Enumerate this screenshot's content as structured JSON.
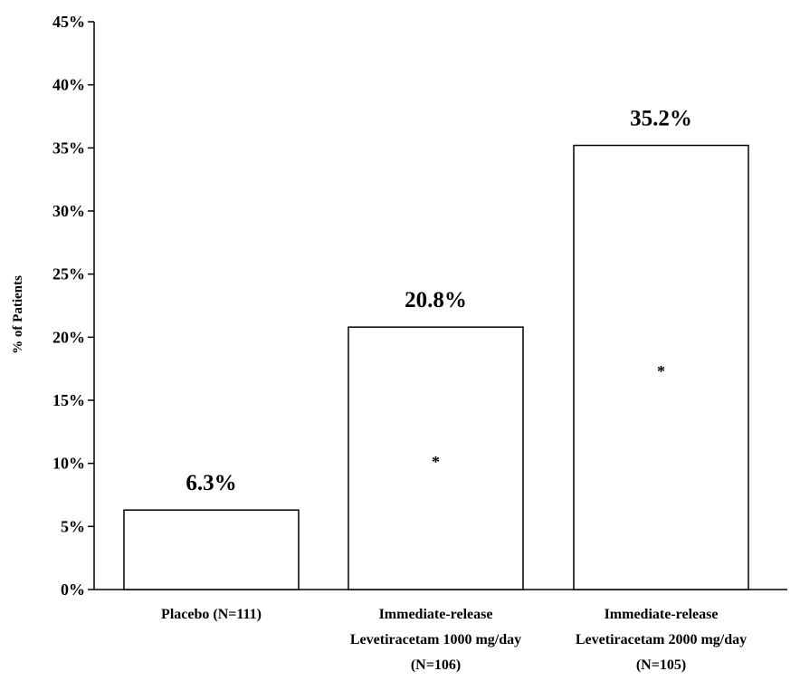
{
  "chart_data": {
    "type": "bar",
    "title": "",
    "xlabel": "",
    "ylabel": "% of Patients",
    "ylim": [
      0,
      45
    ],
    "y_ticks": [
      0,
      5,
      10,
      15,
      20,
      25,
      30,
      35,
      40,
      45
    ],
    "y_tick_format": "percent",
    "grid": false,
    "legend": "none",
    "categories": [
      [
        "Placebo (N=111)"
      ],
      [
        "Immediate-release",
        "Levetiracetam 1000 mg/day",
        "(N=106)"
      ],
      [
        "Immediate-release",
        "Levetiracetam 2000 mg/day",
        "(N=105)"
      ]
    ],
    "values": [
      6.3,
      20.8,
      35.2
    ],
    "data_labels": [
      "6.3%",
      "20.8%",
      "35.2%"
    ],
    "annotations": [
      "",
      "*",
      "*"
    ],
    "colors": {
      "bar_fill": "#ffffff",
      "bar_stroke": "#000000",
      "axis": "#000000",
      "text": "#000000"
    }
  }
}
